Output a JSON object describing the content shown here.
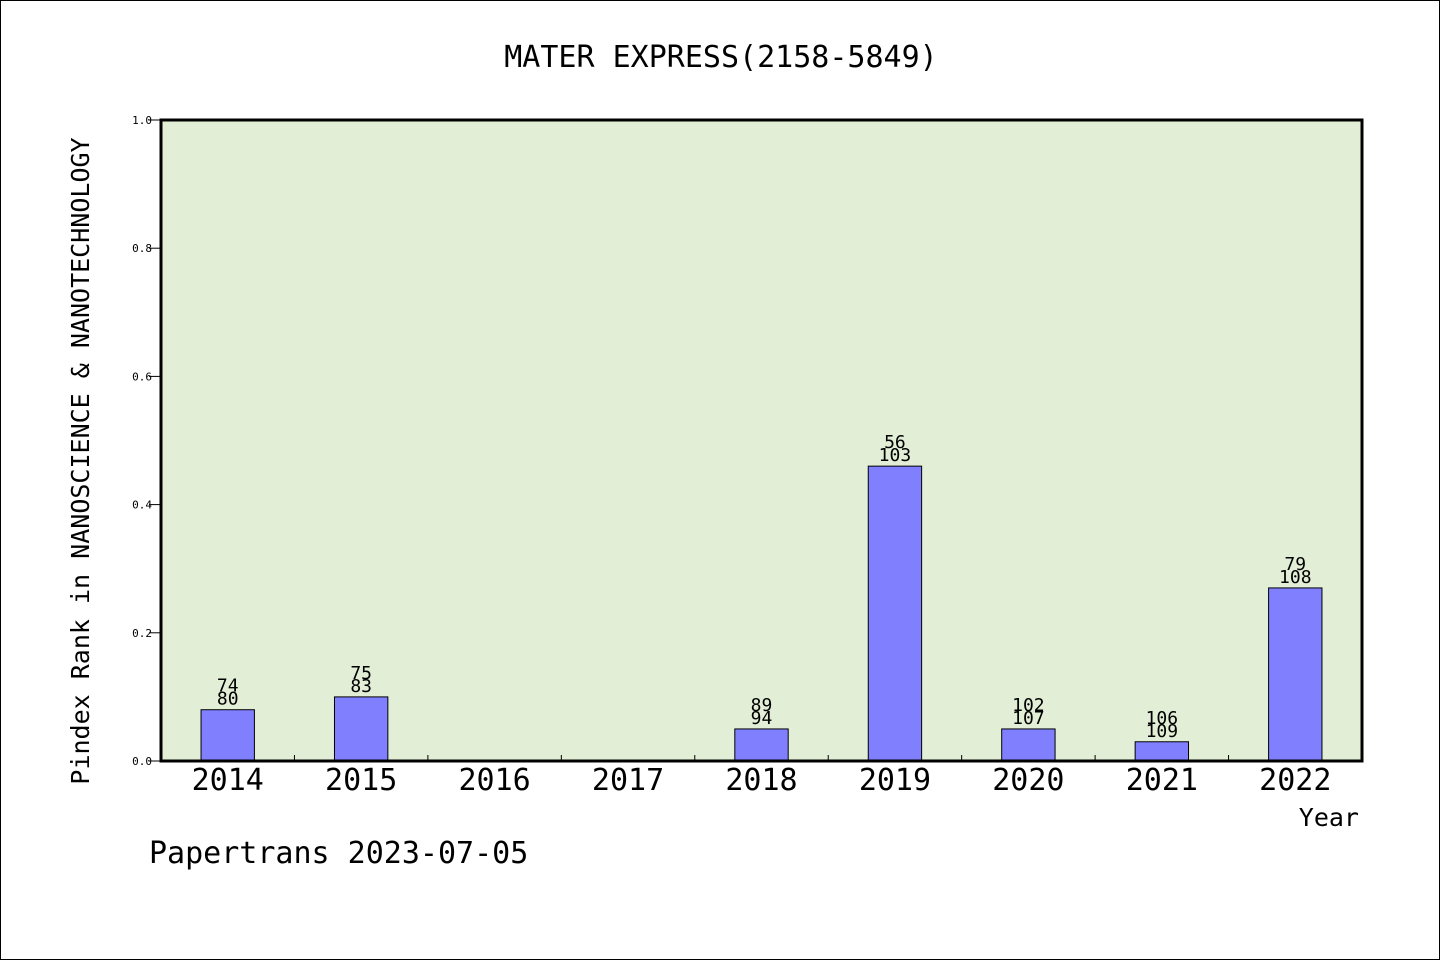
{
  "chart_data": {
    "type": "bar",
    "title": "MATER EXPRESS(2158-5849)",
    "xlabel": "Year",
    "ylabel": "Pindex Rank in NANOSCIENCE & NANOTECHNOLOGY",
    "ylim": [
      0,
      1.0
    ],
    "yticks": [
      "0.0",
      "0.2",
      "0.4",
      "0.6",
      "0.8",
      "1.0"
    ],
    "categories": [
      "2014",
      "2015",
      "2016",
      "2017",
      "2018",
      "2019",
      "2020",
      "2021",
      "2022"
    ],
    "values": [
      0.08,
      0.1,
      0,
      0,
      0.05,
      0.46,
      0.05,
      0.03,
      0.27
    ],
    "labels_top": [
      "74",
      "75",
      "",
      "",
      "89",
      "56",
      "102",
      "106",
      "79"
    ],
    "labels_bottom": [
      "80",
      "83",
      "",
      "",
      "94",
      "103",
      "107",
      "109",
      "108"
    ],
    "colors": {
      "plot_background": "#e2efd6",
      "bar_fill": "#8080ff",
      "bar_stroke": "#000000"
    },
    "grid": false,
    "legend": "none"
  },
  "footer": "Papertrans 2023-07-05"
}
